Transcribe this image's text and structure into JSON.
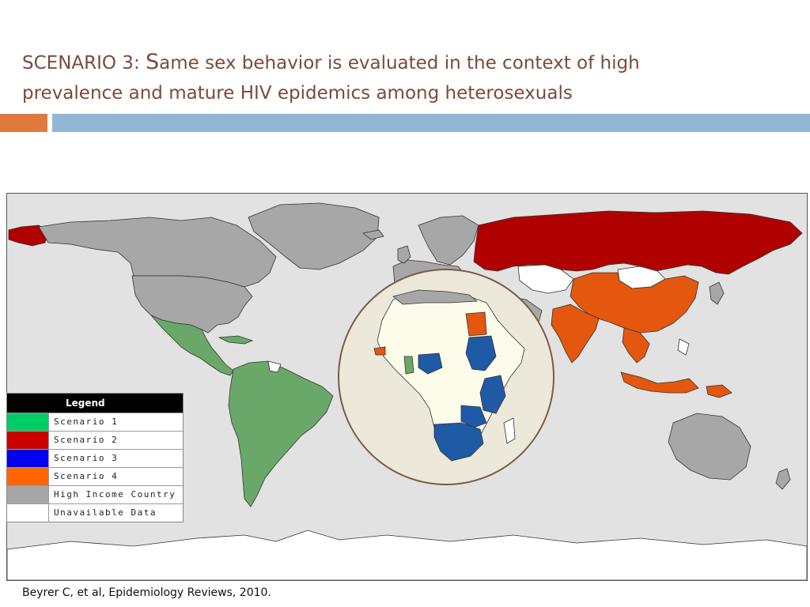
{
  "slide": {
    "title_prefix": "SCENARIO 3: ",
    "title_cap": "S",
    "title_rest_line1": "ame sex behavior is evaluated in the context of high",
    "title_line2": "prevalence and mature HIV epidemics among heterosexuals",
    "citation": "Beyrer C, et al, Epidemiology Reviews, 2010.",
    "accent_orange": "#e07a3c",
    "accent_blue": "#92b7d6"
  },
  "map": {
    "ocean_color": "#e2e2e2",
    "highlight_circle_color": "#ece8da",
    "highlight_circle_stroke": "#7a5a46",
    "colors": {
      "scenario1": "#6aa86a",
      "scenario2": "#b00000",
      "scenario3": "#1f5aa6",
      "scenario4": "#e4570e",
      "high_income": "#a7a7a7",
      "unavailable": "#ffffff",
      "africa_unavailable": "#fdfbea"
    },
    "legend": {
      "title": "Legend",
      "items": [
        {
          "label": "Scenario 1",
          "color": "#00cc66"
        },
        {
          "label": "Scenario 2",
          "color": "#cc0000"
        },
        {
          "label": "Scenario 3",
          "color": "#0000ee"
        },
        {
          "label": "Scenario 4",
          "color": "#ff6600"
        },
        {
          "label": "High Income Country",
          "color": "#a6a6a6"
        },
        {
          "label": "Unavailable Data",
          "color": "#ffffff"
        }
      ]
    }
  }
}
